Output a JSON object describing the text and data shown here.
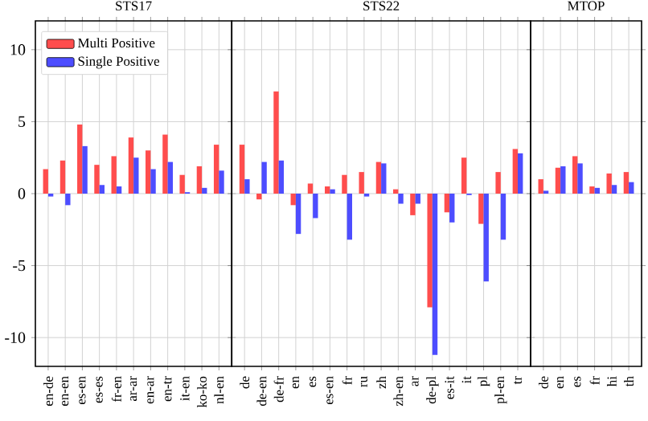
{
  "chart_data": [
    {
      "type": "bar",
      "title": "STS17",
      "categories": [
        "en-de",
        "en-en",
        "es-en",
        "es-es",
        "fr-en",
        "ar-ar",
        "en-ar",
        "en-tr",
        "it-en",
        "ko-ko",
        "nl-en"
      ],
      "series": [
        {
          "name": "Multi Positive",
          "color": "#ff4d4d",
          "values": [
            1.7,
            2.3,
            4.8,
            2.0,
            2.6,
            3.9,
            3.0,
            4.1,
            1.3,
            1.9,
            3.4
          ]
        },
        {
          "name": "Single Positive",
          "color": "#4d4dff",
          "values": [
            -0.2,
            -0.8,
            3.3,
            0.6,
            0.5,
            2.5,
            1.7,
            2.2,
            0.1,
            0.4,
            1.6
          ]
        }
      ],
      "ylim": [
        -12,
        12
      ],
      "yticks": [
        -10,
        -5,
        0,
        5,
        10
      ],
      "grid": true,
      "legend": "top left"
    },
    {
      "type": "bar",
      "title": "STS22",
      "categories": [
        "de",
        "de-en",
        "de-fr",
        "en",
        "es",
        "es-en",
        "fr",
        "ru",
        "zh",
        "zh-en",
        "ar",
        "de-pl",
        "es-it",
        "it",
        "pl",
        "pl-en",
        "tr"
      ],
      "series": [
        {
          "color": "#ff4d4d",
          "values": [
            3.4,
            -0.4,
            7.1,
            -0.8,
            0.7,
            0.5,
            1.3,
            1.5,
            2.2,
            0.3,
            -1.5,
            -7.9,
            -1.3,
            2.5,
            -2.1,
            1.5,
            3.1
          ]
        },
        {
          "color": "#4d4dff",
          "values": [
            1.0,
            2.2,
            2.3,
            -2.8,
            -1.7,
            0.3,
            -3.2,
            -0.2,
            2.1,
            -0.7,
            -0.7,
            -11.2,
            -2.0,
            -0.1,
            -6.1,
            -3.2,
            2.8
          ]
        }
      ],
      "ylim": [
        -12,
        12
      ],
      "yticks": [
        -10,
        -5,
        0,
        5,
        10
      ],
      "grid": true,
      "tick_labels": "x"
    },
    {
      "type": "bar",
      "title": "MTOP",
      "categories": [
        "de",
        "en",
        "es",
        "fr",
        "hi",
        "th"
      ],
      "series": [
        {
          "color": "#ff4d4d",
          "values": [
            1.0,
            1.8,
            2.6,
            0.5,
            1.4,
            1.5
          ]
        },
        {
          "color": "#4d4dff",
          "values": [
            0.2,
            1.9,
            2.1,
            0.4,
            0.6,
            0.8
          ]
        }
      ],
      "ylim": [
        -12,
        12
      ],
      "yticks": [
        -10,
        -5,
        0,
        5,
        10
      ],
      "grid": true,
      "tick_labels": "x"
    }
  ]
}
